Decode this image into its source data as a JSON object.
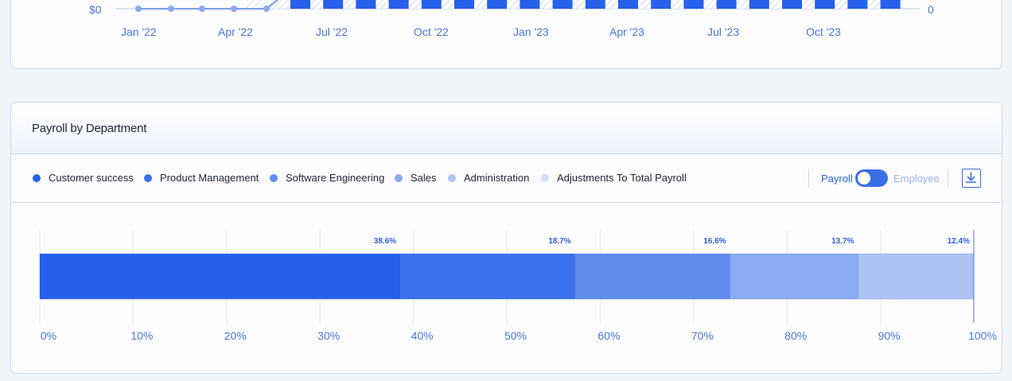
{
  "top_chart": {
    "y_left_label": "$0",
    "y_right_label": "0",
    "x_ticks": [
      "Jan '22",
      "Apr '22",
      "Jul '22",
      "Oct '22",
      "Jan '23",
      "Apr '23",
      "Jul '23",
      "Oct '23"
    ]
  },
  "payroll": {
    "title": "Payroll by Department",
    "legend": [
      {
        "label": "Customer success",
        "color": "#2760ea"
      },
      {
        "label": "Product Management",
        "color": "#3b70ee"
      },
      {
        "label": "Software Engineering",
        "color": "#5f8bec"
      },
      {
        "label": "Sales",
        "color": "#8aabf3"
      },
      {
        "label": "Administration",
        "color": "#aec3f5"
      },
      {
        "label": "Adjustments To Total Payroll",
        "color": "#d4def7"
      }
    ],
    "toggle": {
      "left_label": "Payroll",
      "right_label": "Employee",
      "state": "Payroll"
    },
    "download_icon": "download-icon"
  },
  "chart_data": {
    "type": "bar",
    "orientation": "horizontal-stacked",
    "series": [
      {
        "name": "Customer success",
        "value": 38.6,
        "label": "38.6%"
      },
      {
        "name": "Product Management",
        "value": 18.7,
        "label": "18.7%"
      },
      {
        "name": "Software Engineering",
        "value": 16.6,
        "label": "16.6%"
      },
      {
        "name": "Sales",
        "value": 13.7,
        "label": "13.7%"
      },
      {
        "name": "Administration",
        "value": 12.4,
        "label": "12.4%"
      }
    ],
    "x_ticks": [
      "0%",
      "10%",
      "20%",
      "30%",
      "40%",
      "50%",
      "60%",
      "70%",
      "80%",
      "90%",
      "100%"
    ],
    "xlim": [
      0,
      100
    ],
    "grid": true
  }
}
